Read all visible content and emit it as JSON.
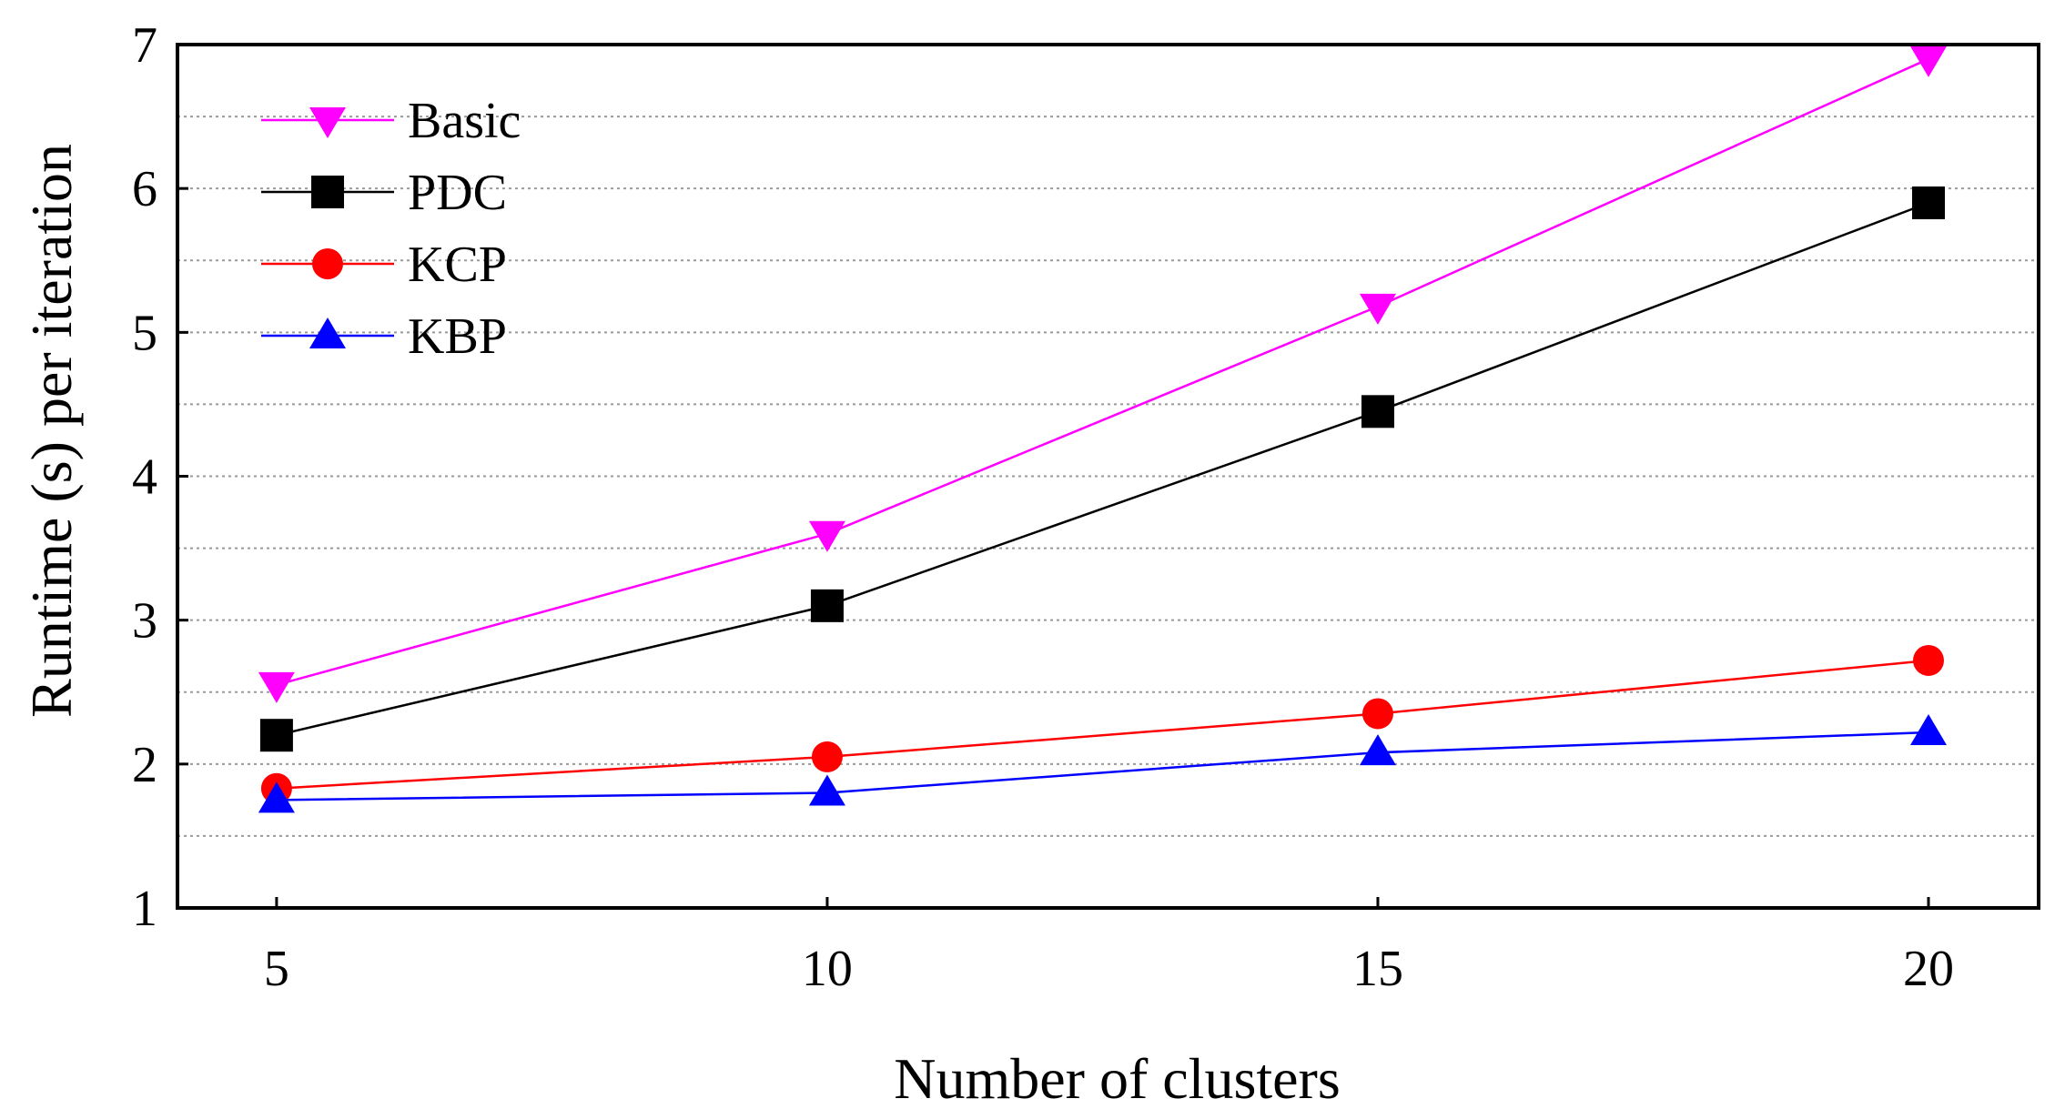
{
  "chart_data": {
    "type": "line",
    "title": "",
    "xlabel": "Number of clusters",
    "ylabel": "Runtime (s) per iteration",
    "x": [
      5,
      10,
      15,
      20
    ],
    "xticks": [
      "5",
      "10",
      "15",
      "20"
    ],
    "yticks": [
      "1",
      "2",
      "3",
      "4",
      "5",
      "6",
      "7"
    ],
    "xlim": [
      4.1,
      21.0
    ],
    "ylim": [
      1,
      7
    ],
    "grid": "horizontal dotted",
    "legend_position": "top-left",
    "series": [
      {
        "name": "Basic",
        "color": "#ff00ff",
        "marker": "triangle-down",
        "values": [
          2.55,
          3.6,
          5.18,
          6.9
        ]
      },
      {
        "name": "PDC",
        "color": "#000000",
        "marker": "square",
        "values": [
          2.2,
          3.1,
          4.45,
          5.9
        ]
      },
      {
        "name": "KCP",
        "color": "#ff0000",
        "marker": "circle",
        "values": [
          1.83,
          2.05,
          2.35,
          2.72
        ]
      },
      {
        "name": "KBP",
        "color": "#0000ff",
        "marker": "triangle-up",
        "values": [
          1.75,
          1.8,
          2.08,
          2.22
        ]
      }
    ]
  }
}
